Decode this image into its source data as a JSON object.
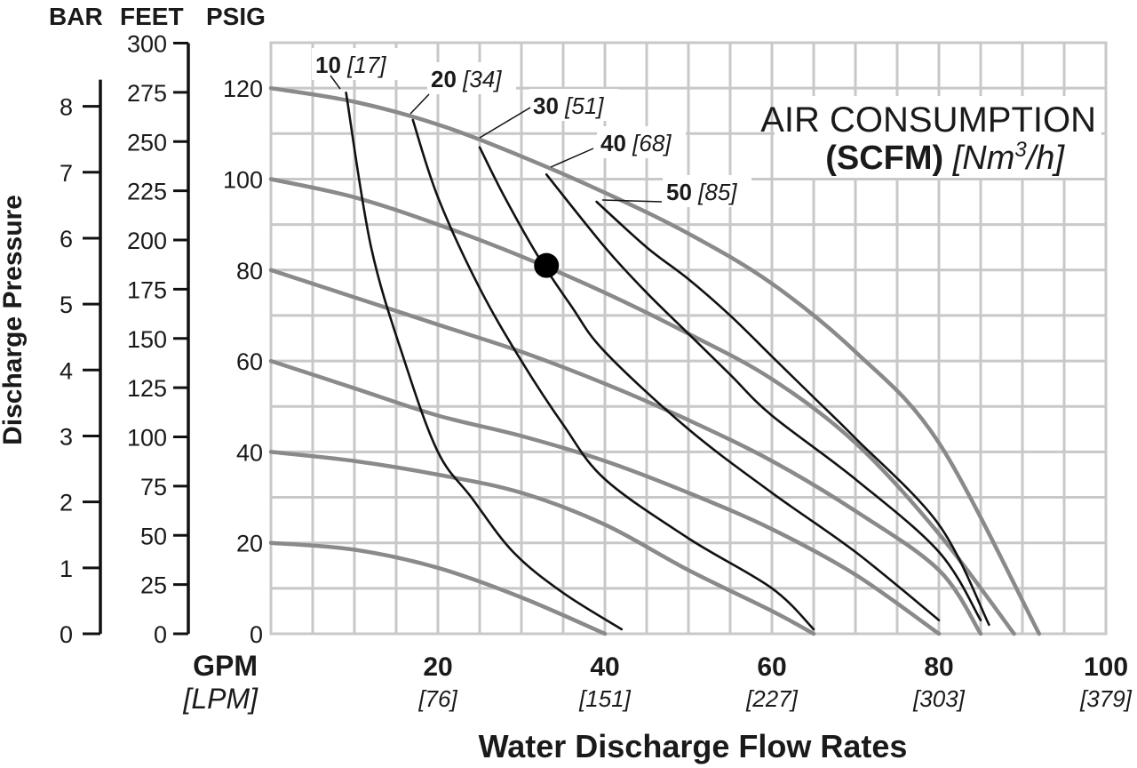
{
  "chart_data": {
    "type": "line",
    "title": "AIR CONSUMPTION",
    "title_line2_bold": "(SCFM)",
    "title_line2_italic_pre": "[Nm",
    "title_line2_sup": "3",
    "title_line2_italic_post": "/h]",
    "xlabel": "Water Discharge Flow Rates",
    "ylabel": "Discharge Pressure",
    "x_unit_primary": "GPM",
    "x_unit_secondary": "[LPM]",
    "x_range": [
      0,
      100
    ],
    "x_ticks": [
      {
        "value": 20,
        "label": "20",
        "sub": "[76]"
      },
      {
        "value": 40,
        "label": "40",
        "sub": "[151]"
      },
      {
        "value": 60,
        "label": "60",
        "sub": "[227]"
      },
      {
        "value": 80,
        "label": "80",
        "sub": "[303]"
      },
      {
        "value": 100,
        "label": "100",
        "sub": "[379]"
      }
    ],
    "y_range": [
      0,
      130
    ],
    "y_axes": [
      {
        "title": "PSIG",
        "ticks": [
          0,
          20,
          40,
          60,
          80,
          100,
          120
        ],
        "labels": [
          "0",
          "20",
          "40",
          "60",
          "80",
          "100",
          "120"
        ]
      },
      {
        "title": "FEET",
        "ticks_psig": [
          0,
          10.83,
          21.65,
          32.48,
          43.3,
          54.13,
          64.95,
          75.78,
          86.6,
          97.43,
          108.25,
          119.08,
          129.9
        ],
        "labels": [
          "0",
          "25",
          "50",
          "75",
          "100",
          "125",
          "150",
          "175",
          "200",
          "225",
          "250",
          "275",
          "300"
        ]
      },
      {
        "title": "BAR",
        "ticks_psig": [
          0,
          14.5,
          29.0,
          43.5,
          58.0,
          72.5,
          87.0,
          101.5,
          116.0
        ],
        "labels": [
          "0",
          "1",
          "2",
          "3",
          "4",
          "5",
          "6",
          "7",
          "8"
        ]
      }
    ],
    "grid": true,
    "pressure_curves": [
      {
        "values": [
          [
            0,
            20
          ],
          [
            10,
            18.5
          ],
          [
            20,
            14.5
          ],
          [
            30,
            8
          ],
          [
            40,
            0
          ]
        ]
      },
      {
        "values": [
          [
            0,
            40
          ],
          [
            10,
            38
          ],
          [
            20,
            35
          ],
          [
            30,
            31
          ],
          [
            40,
            24
          ],
          [
            50,
            14
          ],
          [
            60,
            5
          ],
          [
            65,
            0
          ]
        ]
      },
      {
        "values": [
          [
            0,
            60
          ],
          [
            10,
            54
          ],
          [
            20,
            48
          ],
          [
            30,
            43.5
          ],
          [
            40,
            38
          ],
          [
            50,
            31
          ],
          [
            60,
            23
          ],
          [
            70,
            13
          ],
          [
            80,
            0
          ]
        ]
      },
      {
        "values": [
          [
            0,
            80
          ],
          [
            10,
            74
          ],
          [
            20,
            68
          ],
          [
            30,
            62
          ],
          [
            40,
            55
          ],
          [
            50,
            47
          ],
          [
            60,
            38
          ],
          [
            70,
            27
          ],
          [
            80,
            14
          ],
          [
            85,
            0
          ]
        ]
      },
      {
        "values": [
          [
            0,
            100
          ],
          [
            10,
            96
          ],
          [
            20,
            90
          ],
          [
            30,
            83
          ],
          [
            40,
            75
          ],
          [
            50,
            66
          ],
          [
            60,
            56
          ],
          [
            70,
            42
          ],
          [
            80,
            22
          ],
          [
            89,
            0
          ]
        ]
      },
      {
        "values": [
          [
            0,
            120
          ],
          [
            10,
            117
          ],
          [
            20,
            112
          ],
          [
            30,
            105
          ],
          [
            40,
            97
          ],
          [
            50,
            88
          ],
          [
            60,
            77
          ],
          [
            70,
            62
          ],
          [
            80,
            42
          ],
          [
            92,
            0
          ]
        ]
      }
    ],
    "air_curves": [
      {
        "label": "10",
        "sub": "[17]",
        "values": [
          [
            9,
            119
          ],
          [
            12,
            85
          ],
          [
            16,
            60
          ],
          [
            20,
            40
          ],
          [
            24,
            30
          ],
          [
            29,
            18
          ],
          [
            35,
            9
          ],
          [
            42,
            1
          ]
        ]
      },
      {
        "label": "20",
        "sub": "[34]",
        "values": [
          [
            17,
            113
          ],
          [
            20,
            96
          ],
          [
            25,
            76
          ],
          [
            30,
            60
          ],
          [
            35,
            46
          ],
          [
            40,
            34
          ],
          [
            50,
            21
          ],
          [
            60,
            10
          ],
          [
            65,
            1
          ]
        ]
      },
      {
        "label": "30",
        "sub": "[51]",
        "values": [
          [
            25,
            107
          ],
          [
            28,
            96
          ],
          [
            32,
            83
          ],
          [
            36,
            72
          ],
          [
            40,
            62
          ],
          [
            50,
            45
          ],
          [
            60,
            31
          ],
          [
            70,
            18
          ],
          [
            80,
            3
          ]
        ]
      },
      {
        "label": "40",
        "sub": "[68]",
        "values": [
          [
            33,
            101
          ],
          [
            40,
            85
          ],
          [
            45,
            75
          ],
          [
            50,
            66
          ],
          [
            55,
            57
          ],
          [
            60,
            48
          ],
          [
            70,
            34
          ],
          [
            80,
            18
          ],
          [
            85,
            3
          ]
        ]
      },
      {
        "label": "50",
        "sub": "[85]",
        "values": [
          [
            39,
            95
          ],
          [
            45,
            85
          ],
          [
            50,
            78
          ],
          [
            55,
            70
          ],
          [
            60,
            61
          ],
          [
            65,
            52
          ],
          [
            70,
            43
          ],
          [
            80,
            24
          ],
          [
            86,
            2
          ]
        ]
      }
    ],
    "operating_point": {
      "x": 33,
      "y": 81
    }
  }
}
